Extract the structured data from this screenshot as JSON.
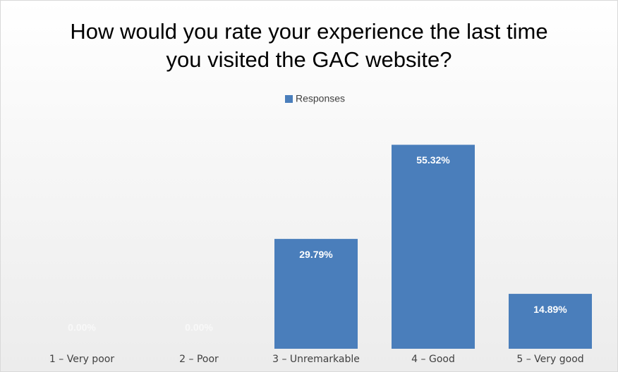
{
  "chart_data": {
    "type": "bar",
    "title": "How would you rate your experience the last time you visited the GAC website?",
    "categories": [
      "1 – Very poor",
      "2 – Poor",
      "3 – Unremarkable",
      "4 – Good",
      "5 – Very good"
    ],
    "series": [
      {
        "name": "Responses",
        "color": "#4a7ebb",
        "values": [
          0,
          0,
          29.79,
          55.32,
          14.89
        ],
        "value_labels": [
          "0.00%",
          "0.00%",
          "29.79%",
          "55.32%",
          "14.89%"
        ]
      }
    ],
    "ylim": [
      0,
      60
    ]
  }
}
